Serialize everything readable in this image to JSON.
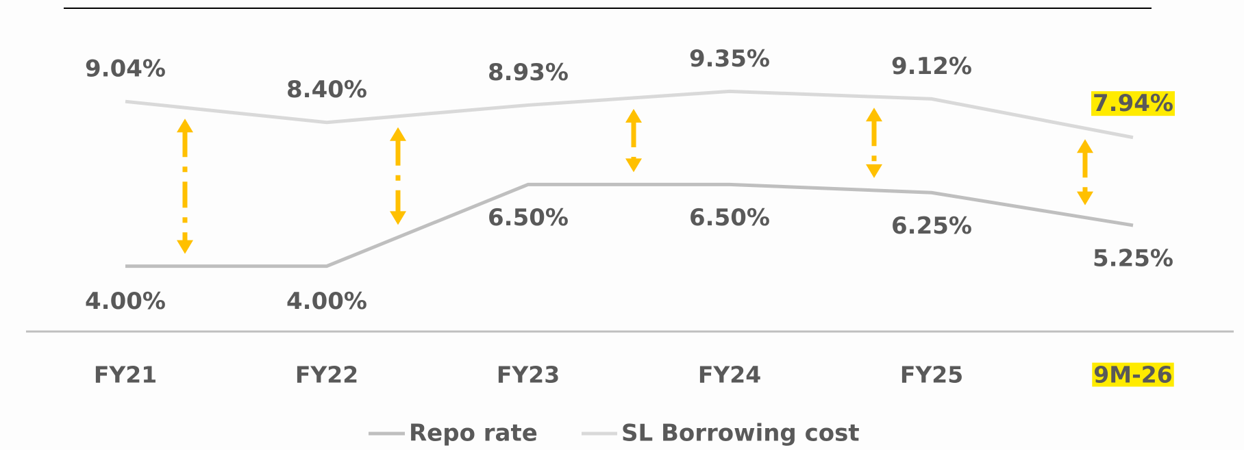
{
  "chart_data": {
    "type": "line",
    "categories": [
      "FY21",
      "FY22",
      "FY23",
      "FY24",
      "FY25",
      "9M-26"
    ],
    "series": [
      {
        "name": "Repo rate",
        "color": "#bfbfbf",
        "values": [
          4.0,
          4.0,
          6.5,
          6.5,
          6.25,
          5.25
        ],
        "value_labels": [
          "4.00%",
          "4.00%",
          "6.50%",
          "6.50%",
          "6.25%",
          "5.25%"
        ]
      },
      {
        "name": "SL Borrowing cost",
        "color": "#d9d9d9",
        "values": [
          9.04,
          8.4,
          8.93,
          9.35,
          9.12,
          7.94
        ],
        "value_labels": [
          "9.04%",
          "8.40%",
          "8.93%",
          "9.35%",
          "9.12%",
          "7.94%"
        ]
      }
    ],
    "ylim": [
      2,
      12
    ],
    "highlight_color": "#ffeb00",
    "arrow_color": "#ffc000"
  }
}
